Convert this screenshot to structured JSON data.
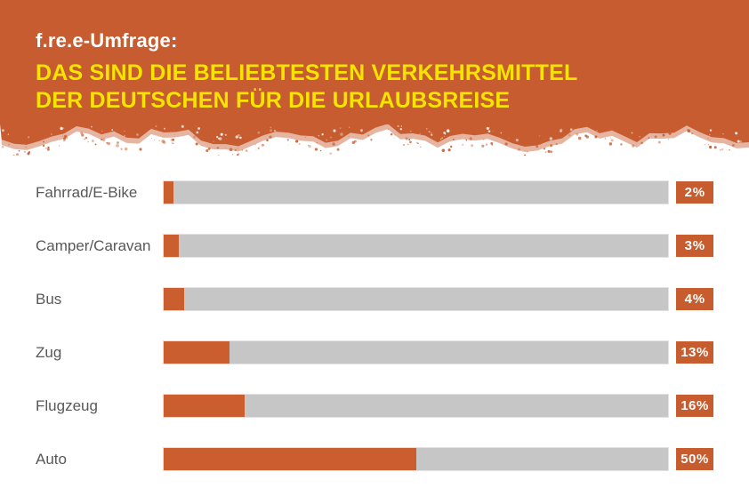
{
  "header": {
    "kicker": "f.re.e-Umfrage:",
    "title_line1": "DAS SIND DIE BELIEBTESTEN VERKEHRSMITTEL",
    "title_line2": "DER DEUTSCHEN FÜR DIE URLAUBSREISE"
  },
  "colors": {
    "header_bg": "#c65c2f",
    "bar_fill": "#ca5e2e",
    "bar_track": "#c6c6c6",
    "value_box_bg": "#c75c2e",
    "title_yellow": "#f5e300",
    "kicker_white": "#ffffff",
    "label_gray": "#585858",
    "page_bg": "#ffffff"
  },
  "chart_data": {
    "type": "bar",
    "orientation": "horizontal",
    "title": "DAS SIND DIE BELIEBTESTEN VERKEHRSMITTEL DER DEUTSCHEN FÜR DIE URLAUBSREISE",
    "subtitle": "f.re.e-Umfrage:",
    "categories": [
      "Fahrrad/E-Bike",
      "Camper/Caravan",
      "Bus",
      "Zug",
      "Flugzeug",
      "Auto"
    ],
    "values": [
      2,
      3,
      4,
      13,
      16,
      50
    ],
    "value_labels": [
      "2 %",
      "3 %",
      "4 %",
      "13 %",
      "16 %",
      "50 %"
    ],
    "xlim": [
      0,
      100
    ],
    "grid": false,
    "legend": "none",
    "value_label_position": "right-badge"
  }
}
